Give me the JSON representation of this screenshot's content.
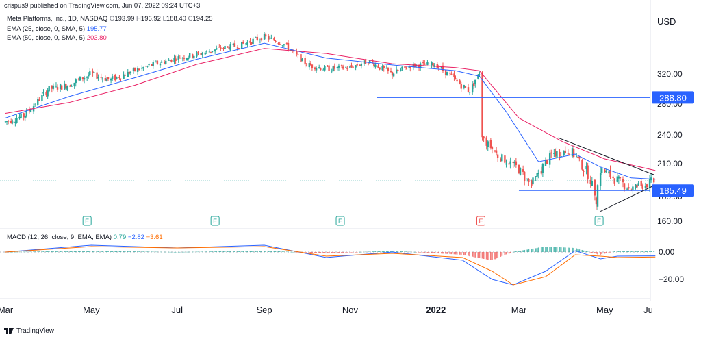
{
  "published_by": "crispus9 published on TradingView.com, Jun 07, 2022 09:24 UTC+3",
  "currency": "USD",
  "symbol_line": {
    "name": "Meta Platforms, Inc., 1D, NASDAQ",
    "o_label": "O",
    "o": "193.99",
    "h_label": "H",
    "h": "196.92",
    "l_label": "L",
    "l": "188.40",
    "c_label": "C",
    "c": "194.25"
  },
  "ema25": {
    "label": "EMA (25, close, 0, SMA, 5)",
    "value": "195.77",
    "color": "#2962ff"
  },
  "ema50": {
    "label": "EMA (50, close, 0, SMA, 5)",
    "value": "203.80",
    "color": "#e91e63"
  },
  "macd_legend": {
    "label": "MACD (12, 26, close, 9, EMA, EMA)",
    "hist": "0.79",
    "macd": "−2.82",
    "signal": "−3.61"
  },
  "watermark": "TradingView",
  "colors": {
    "up": "#26a69a",
    "down": "#ef5350",
    "ema25": "#2962ff",
    "ema50": "#e91e63",
    "macd": "#2962ff",
    "signal": "#ff6d00",
    "hline": "#2962ff",
    "trend": "#131722"
  },
  "chart_data": {
    "type": "candlestick",
    "x_ticks": [
      "Mar",
      "May",
      "Jul",
      "Sep",
      "Nov",
      "2022",
      "Mar",
      "May",
      "Ju"
    ],
    "price_ticks": [
      "320.00",
      "280.00",
      "240.00",
      "210.00",
      "180.00",
      "160.00"
    ],
    "price_tick_values": [
      320,
      280,
      240,
      210,
      180,
      160
    ],
    "macd_ticks": [
      "0.00",
      "−20.00"
    ],
    "macd_tick_values": [
      0,
      -20
    ],
    "price_labels": [
      {
        "text": "288.80",
        "value": 288.8
      },
      {
        "text": "185.49",
        "value": 185.49
      }
    ],
    "earnings_markers": [
      {
        "month": "2021-04-28",
        "label": "E",
        "color": "#26a69a"
      },
      {
        "month": "2021-07-28",
        "label": "E",
        "color": "#26a69a"
      },
      {
        "month": "2021-10-25",
        "label": "E",
        "color": "#26a69a"
      },
      {
        "month": "2022-02-02",
        "label": "E",
        "color": "#ef5350"
      },
      {
        "month": "2022-04-27",
        "label": "E",
        "color": "#26a69a"
      }
    ],
    "close_path": [
      [
        "2021-03-01",
        257
      ],
      [
        "2021-03-15",
        265
      ],
      [
        "2021-04-01",
        300
      ],
      [
        "2021-04-15",
        305
      ],
      [
        "2021-05-01",
        320
      ],
      [
        "2021-05-15",
        312
      ],
      [
        "2021-06-01",
        325
      ],
      [
        "2021-06-15",
        335
      ],
      [
        "2021-07-01",
        345
      ],
      [
        "2021-07-15",
        350
      ],
      [
        "2021-08-01",
        360
      ],
      [
        "2021-08-15",
        365
      ],
      [
        "2021-09-01",
        378
      ],
      [
        "2021-09-15",
        368
      ],
      [
        "2021-10-01",
        335
      ],
      [
        "2021-10-15",
        328
      ],
      [
        "2021-11-01",
        330
      ],
      [
        "2021-11-15",
        340
      ],
      [
        "2021-12-01",
        320
      ],
      [
        "2021-12-15",
        333
      ],
      [
        "2022-01-01",
        335
      ],
      [
        "2022-01-15",
        312
      ],
      [
        "2022-01-25",
        297
      ],
      [
        "2022-02-02",
        322
      ],
      [
        "2022-02-03",
        237
      ],
      [
        "2022-02-15",
        218
      ],
      [
        "2022-03-01",
        206
      ],
      [
        "2022-03-10",
        190
      ],
      [
        "2022-03-25",
        220
      ],
      [
        "2022-04-07",
        224
      ],
      [
        "2022-04-20",
        200
      ],
      [
        "2022-04-26",
        176
      ],
      [
        "2022-04-28",
        205
      ],
      [
        "2022-05-09",
        196
      ],
      [
        "2022-05-20",
        187
      ],
      [
        "2022-06-06",
        194
      ]
    ],
    "ema25_path": [
      [
        "2021-03-01",
        262
      ],
      [
        "2021-04-15",
        290
      ],
      [
        "2021-06-01",
        315
      ],
      [
        "2021-07-15",
        343
      ],
      [
        "2021-09-01",
        368
      ],
      [
        "2021-10-15",
        345
      ],
      [
        "2021-12-01",
        334
      ],
      [
        "2022-01-15",
        325
      ],
      [
        "2022-02-01",
        317
      ],
      [
        "2022-02-20",
        270
      ],
      [
        "2022-03-15",
        212
      ],
      [
        "2022-04-10",
        220
      ],
      [
        "2022-04-28",
        207
      ],
      [
        "2022-05-20",
        197
      ],
      [
        "2022-06-06",
        195.77
      ]
    ],
    "ema50_path": [
      [
        "2021-03-01",
        268
      ],
      [
        "2021-04-15",
        282
      ],
      [
        "2021-06-01",
        305
      ],
      [
        "2021-07-15",
        335
      ],
      [
        "2021-09-01",
        360
      ],
      [
        "2021-10-15",
        352
      ],
      [
        "2021-12-01",
        336
      ],
      [
        "2022-01-15",
        330
      ],
      [
        "2022-02-01",
        325
      ],
      [
        "2022-03-01",
        262
      ],
      [
        "2022-04-01",
        233
      ],
      [
        "2022-05-01",
        215
      ],
      [
        "2022-06-06",
        203.8
      ]
    ],
    "macd_path": [
      [
        "2021-03-01",
        0
      ],
      [
        "2021-05-01",
        5
      ],
      [
        "2021-07-01",
        3
      ],
      [
        "2021-09-01",
        5
      ],
      [
        "2021-10-15",
        -4
      ],
      [
        "2021-12-01",
        0
      ],
      [
        "2022-01-20",
        -6
      ],
      [
        "2022-02-10",
        -20
      ],
      [
        "2022-02-25",
        -24
      ],
      [
        "2022-03-20",
        -14
      ],
      [
        "2022-04-10",
        1
      ],
      [
        "2022-04-28",
        -5
      ],
      [
        "2022-05-10",
        -3
      ],
      [
        "2022-06-06",
        -2.82
      ]
    ],
    "signal_path": [
      [
        "2021-03-01",
        0
      ],
      [
        "2021-05-01",
        4
      ],
      [
        "2021-07-01",
        3
      ],
      [
        "2021-09-01",
        4
      ],
      [
        "2021-10-15",
        -3
      ],
      [
        "2021-12-01",
        -1
      ],
      [
        "2022-01-20",
        -4
      ],
      [
        "2022-02-10",
        -14
      ],
      [
        "2022-02-25",
        -24
      ],
      [
        "2022-03-20",
        -18
      ],
      [
        "2022-04-10",
        -2
      ],
      [
        "2022-04-28",
        -3
      ],
      [
        "2022-05-10",
        -4
      ],
      [
        "2022-06-06",
        -3.61
      ]
    ]
  }
}
